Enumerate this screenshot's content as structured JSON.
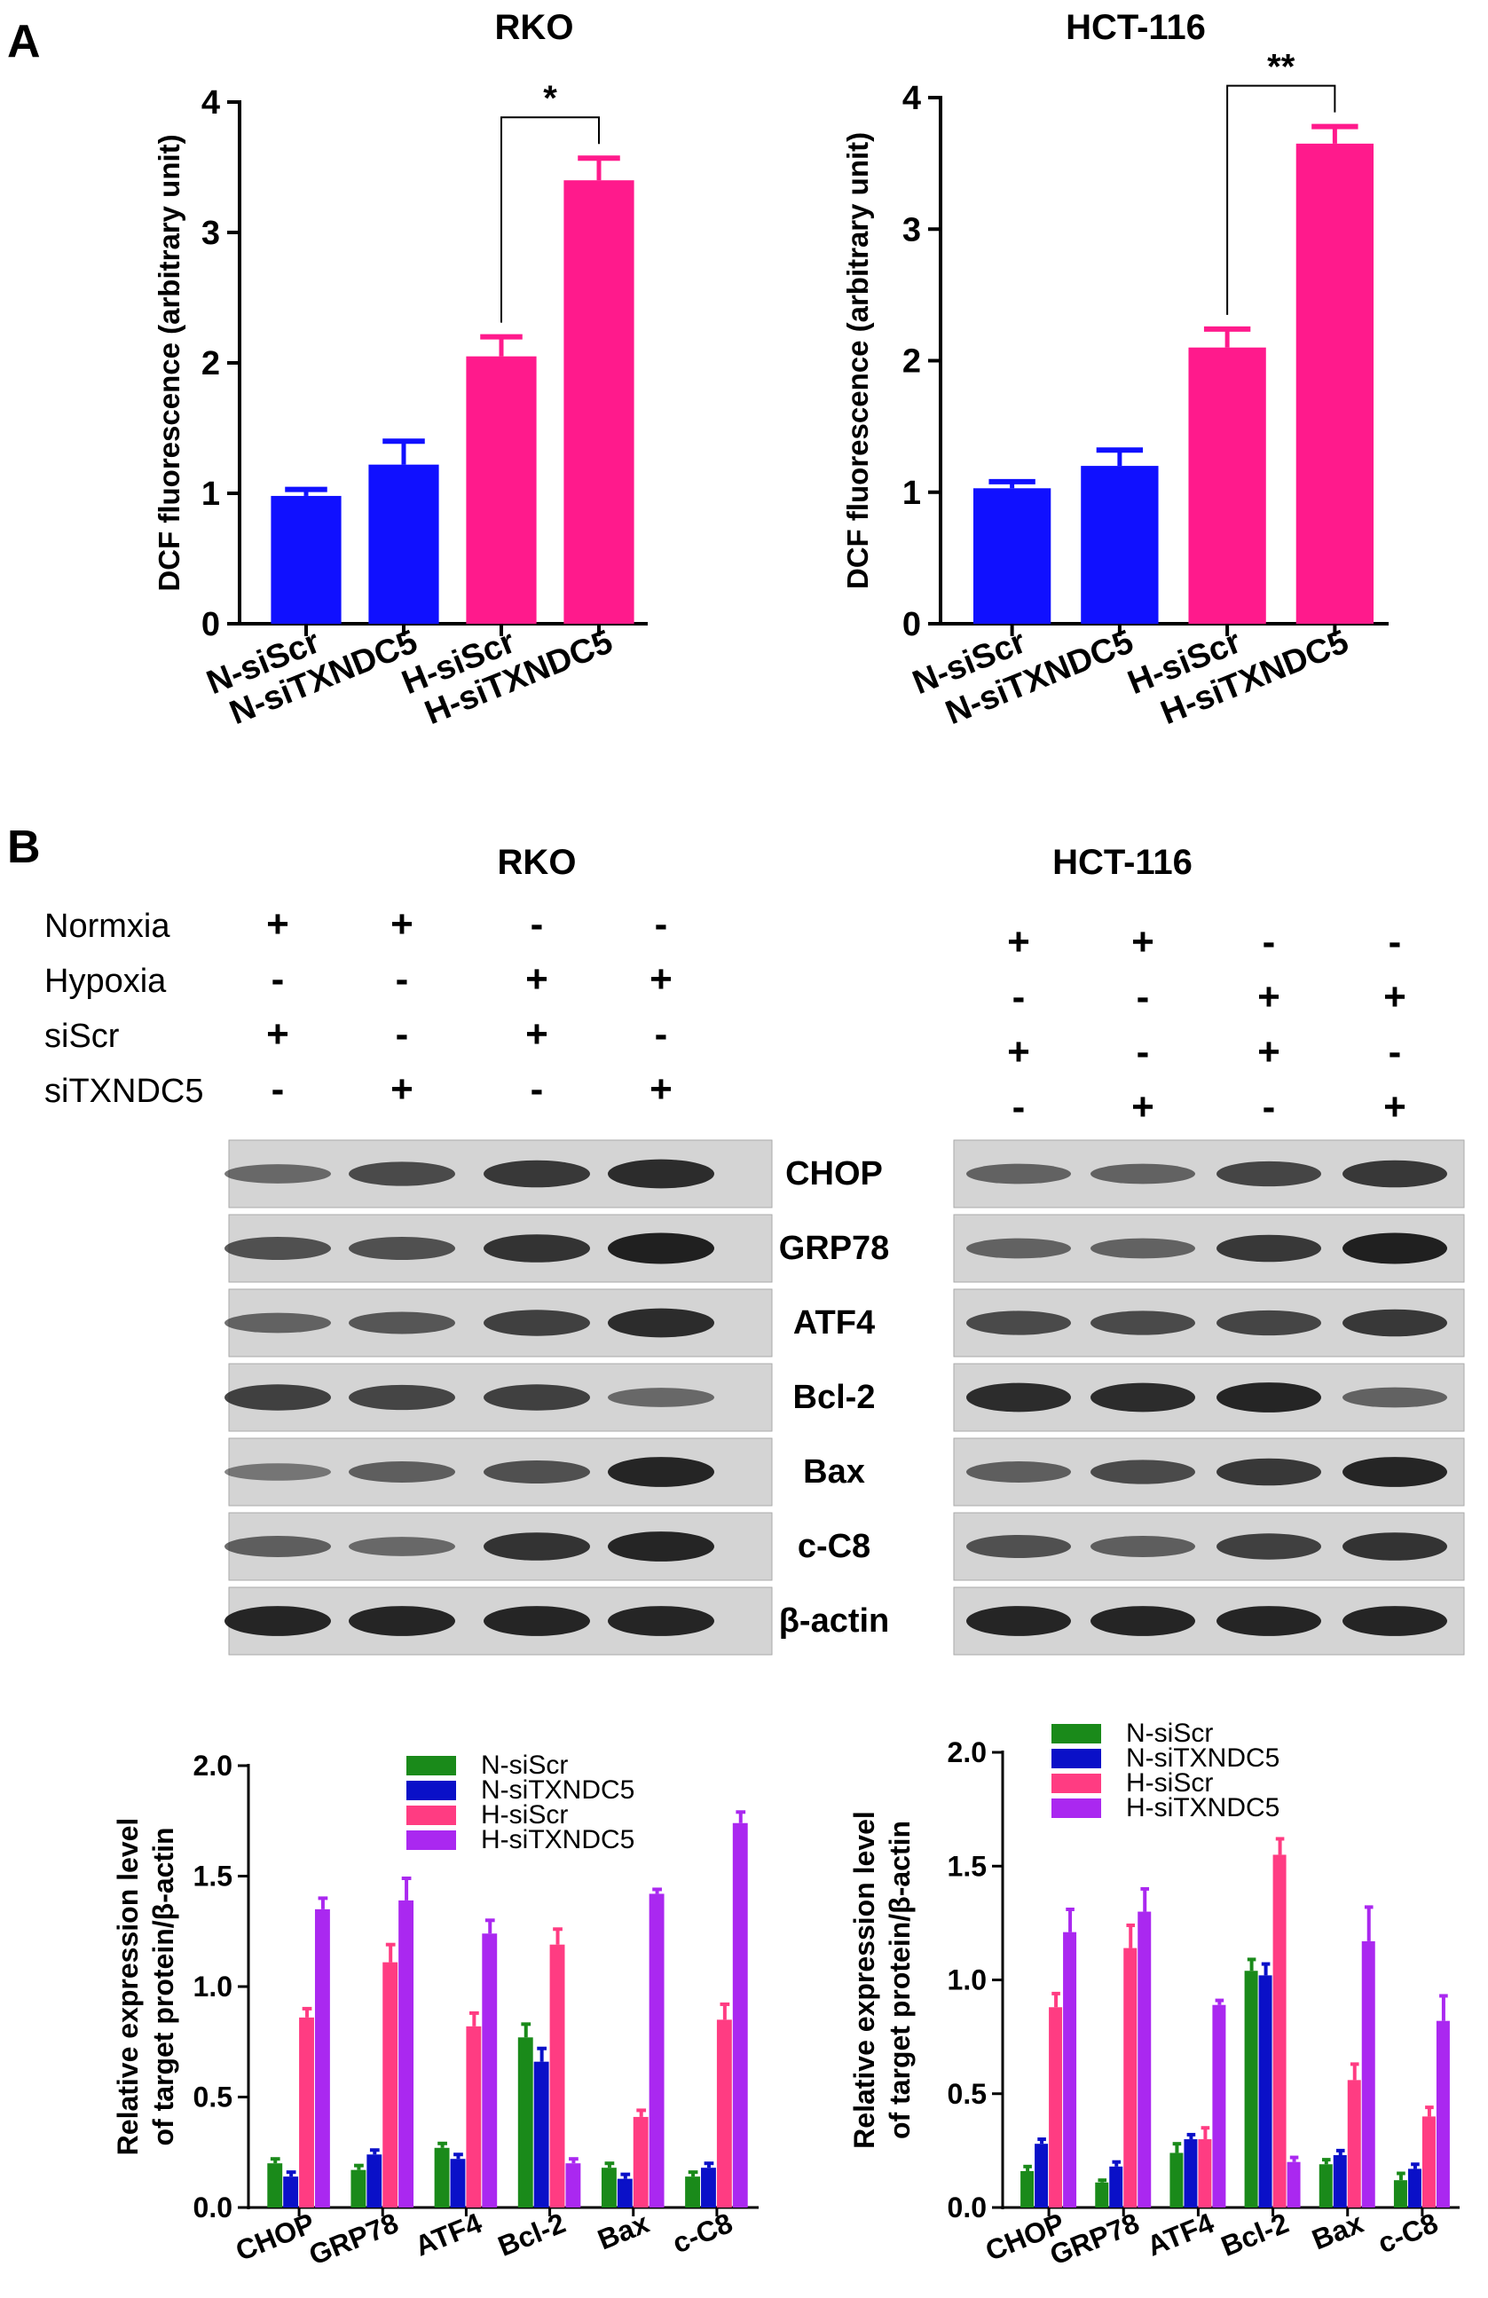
{
  "panels": {
    "a": "A",
    "b": "B"
  },
  "colors": {
    "blue": "#1010ff",
    "magenta": "#ff1a8c",
    "green": "#1a8a1a",
    "navy": "#0a10c8",
    "pink": "#ff3c82",
    "purple": "#aa28f0",
    "blot_bg": "#d4d4d4",
    "band": "#1a1a1a"
  },
  "blot": {
    "rko_title": "RKO",
    "hct_title": "HCT-116",
    "conditions": [
      "Normxia",
      "Hypoxia",
      "siScr",
      "siTXNDC5"
    ],
    "rko_signs": [
      [
        "+",
        "+",
        "-",
        "-"
      ],
      [
        "-",
        "-",
        "+",
        "+"
      ],
      [
        "+",
        "-",
        "+",
        "-"
      ],
      [
        "-",
        "+",
        "-",
        "+"
      ]
    ],
    "hct_signs": [
      [
        "+",
        "+",
        "-",
        "-"
      ],
      [
        "-",
        "-",
        "+",
        "+"
      ],
      [
        "+",
        "-",
        "+",
        "-"
      ],
      [
        "-",
        "+",
        "-",
        "+"
      ]
    ],
    "proteins": [
      "CHOP",
      "GRP78",
      "ATF4",
      "Bcl-2",
      "Bax",
      "c-C8",
      "β-actin"
    ],
    "rko_intensity": [
      [
        0.35,
        0.6,
        0.75,
        0.85
      ],
      [
        0.55,
        0.55,
        0.8,
        0.95
      ],
      [
        0.4,
        0.5,
        0.7,
        0.85
      ],
      [
        0.7,
        0.65,
        0.7,
        0.35
      ],
      [
        0.25,
        0.45,
        0.55,
        0.9
      ],
      [
        0.45,
        0.35,
        0.8,
        0.9
      ],
      [
        0.9,
        0.9,
        0.9,
        0.9
      ]
    ],
    "hct_intensity": [
      [
        0.4,
        0.4,
        0.65,
        0.75
      ],
      [
        0.4,
        0.4,
        0.75,
        0.95
      ],
      [
        0.6,
        0.6,
        0.65,
        0.75
      ],
      [
        0.85,
        0.85,
        0.9,
        0.4
      ],
      [
        0.45,
        0.6,
        0.75,
        0.9
      ],
      [
        0.55,
        0.45,
        0.7,
        0.8
      ],
      [
        0.9,
        0.9,
        0.9,
        0.9
      ]
    ]
  },
  "chart_data": [
    {
      "id": "rko-dcf",
      "type": "bar",
      "title": "RKO",
      "ylabel": "DCF fluorescence (arbitrary unit)",
      "categories": [
        "N-siScr",
        "N-siTXNDC5",
        "H-siScr",
        "H-siTXNDC5"
      ],
      "values": [
        0.98,
        1.22,
        2.05,
        3.4
      ],
      "errors": [
        0.05,
        0.18,
        0.15,
        0.17
      ],
      "colors": [
        "#1010ff",
        "#1010ff",
        "#ff1a8c",
        "#ff1a8c"
      ],
      "ylim": [
        0,
        4
      ],
      "yticks": [
        "0",
        "1",
        "2",
        "3",
        "4"
      ],
      "significance": {
        "from": 2,
        "to": 3,
        "label": "*"
      }
    },
    {
      "id": "hct-dcf",
      "type": "bar",
      "title": "HCT-116",
      "ylabel": "DCF fluorescence (arbitrary unit)",
      "categories": [
        "N-siScr",
        "N-siTXNDC5",
        "H-siScr",
        "H-siTXNDC5"
      ],
      "values": [
        1.03,
        1.2,
        2.1,
        3.65
      ],
      "errors": [
        0.05,
        0.12,
        0.14,
        0.13
      ],
      "colors": [
        "#1010ff",
        "#1010ff",
        "#ff1a8c",
        "#ff1a8c"
      ],
      "ylim": [
        0,
        4
      ],
      "yticks": [
        "0",
        "1",
        "2",
        "3",
        "4"
      ],
      "significance": {
        "from": 2,
        "to": 3,
        "label": "**"
      }
    },
    {
      "id": "rko-expression",
      "type": "bar",
      "ylabel": "Relative expression level\nof target protein/β-actin",
      "categories": [
        "CHOP",
        "GRP78",
        "ATF4",
        "Bcl-2",
        "Bax",
        "c-C8"
      ],
      "ylim": [
        0,
        2.0
      ],
      "yticks": [
        "0.0",
        "0.5",
        "1.0",
        "1.5",
        "2.0"
      ],
      "legend_position": "top-center",
      "series": [
        {
          "name": "N-siScr",
          "color": "#1a8a1a",
          "values": [
            0.2,
            0.17,
            0.27,
            0.77,
            0.18,
            0.14
          ],
          "errors": [
            0.02,
            0.02,
            0.02,
            0.06,
            0.02,
            0.02
          ]
        },
        {
          "name": "N-siTXNDC5",
          "color": "#0a10c8",
          "values": [
            0.14,
            0.24,
            0.22,
            0.66,
            0.13,
            0.18
          ],
          "errors": [
            0.02,
            0.02,
            0.02,
            0.06,
            0.02,
            0.02
          ]
        },
        {
          "name": "H-siScr",
          "color": "#ff3c82",
          "values": [
            0.86,
            1.11,
            0.82,
            1.19,
            0.41,
            0.85
          ],
          "errors": [
            0.04,
            0.08,
            0.06,
            0.07,
            0.03,
            0.07
          ]
        },
        {
          "name": "H-siTXNDC5",
          "color": "#aa28f0",
          "values": [
            1.35,
            1.39,
            1.24,
            0.2,
            1.42,
            1.74
          ],
          "errors": [
            0.05,
            0.1,
            0.06,
            0.02,
            0.02,
            0.05
          ]
        }
      ]
    },
    {
      "id": "hct-expression",
      "type": "bar",
      "ylabel": "Relative expression level\nof target protein/β-actin",
      "categories": [
        "CHOP",
        "GRP78",
        "ATF4",
        "Bcl-2",
        "Bax",
        "c-C8"
      ],
      "ylim": [
        0,
        2.0
      ],
      "yticks": [
        "0.0",
        "0.5",
        "1.0",
        "1.5",
        "2.0"
      ],
      "legend_position": "top-center",
      "series": [
        {
          "name": "N-siScr",
          "color": "#1a8a1a",
          "values": [
            0.16,
            0.11,
            0.24,
            1.04,
            0.19,
            0.12
          ],
          "errors": [
            0.02,
            0.01,
            0.04,
            0.05,
            0.02,
            0.03
          ]
        },
        {
          "name": "N-siTXNDC5",
          "color": "#0a10c8",
          "values": [
            0.28,
            0.18,
            0.3,
            1.02,
            0.23,
            0.17
          ],
          "errors": [
            0.02,
            0.02,
            0.02,
            0.05,
            0.02,
            0.02
          ]
        },
        {
          "name": "H-siScr",
          "color": "#ff3c82",
          "values": [
            0.88,
            1.14,
            0.3,
            1.55,
            0.56,
            0.4
          ],
          "errors": [
            0.06,
            0.1,
            0.05,
            0.07,
            0.07,
            0.04
          ]
        },
        {
          "name": "H-siTXNDC5",
          "color": "#aa28f0",
          "values": [
            1.21,
            1.3,
            0.89,
            0.2,
            1.17,
            0.82
          ],
          "errors": [
            0.1,
            0.1,
            0.02,
            0.02,
            0.15,
            0.11
          ]
        }
      ]
    }
  ]
}
